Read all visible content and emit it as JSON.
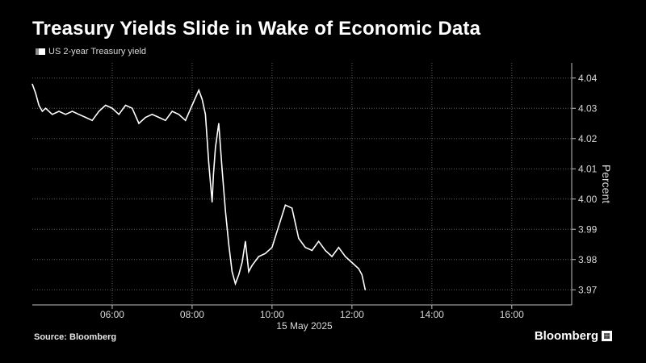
{
  "header": {
    "title": "Treasury Yields Slide in Wake of Economic Data"
  },
  "footer": {
    "source": "Source: Bloomberg",
    "brand": "Bloomberg"
  },
  "colors": {
    "background": "#000000",
    "line": "#ffffff",
    "grid": "#5a5a5a",
    "text": "#d9d9d9"
  },
  "chart_data": {
    "type": "line",
    "title": "Treasury Yields Slide in Wake of Economic Data",
    "xlabel": "15 May 2025",
    "ylabel": "Percent",
    "ylim": [
      3.965,
      4.045
    ],
    "xlim": [
      "04:00",
      "17:30"
    ],
    "x_tick_labels": [
      "06:00",
      "08:00",
      "10:00",
      "12:00",
      "14:00",
      "16:00"
    ],
    "y_tick_labels": [
      "4.04",
      "4.03",
      "4.02",
      "4.01",
      "4.00",
      "3.99",
      "3.98",
      "3.97"
    ],
    "grid": true,
    "y_axis_side": "right",
    "legend_position": "top-left",
    "series": [
      {
        "name": "US 2-year Treasury yield",
        "color": "#ffffff",
        "x": [
          "04:00",
          "04:05",
          "04:10",
          "04:15",
          "04:20",
          "04:30",
          "04:40",
          "04:50",
          "05:00",
          "05:10",
          "05:20",
          "05:30",
          "05:40",
          "05:50",
          "06:00",
          "06:10",
          "06:20",
          "06:30",
          "06:40",
          "06:50",
          "07:00",
          "07:10",
          "07:20",
          "07:30",
          "07:40",
          "07:50",
          "08:00",
          "08:10",
          "08:15",
          "08:20",
          "08:25",
          "08:30",
          "08:32",
          "08:35",
          "08:40",
          "08:45",
          "08:50",
          "08:55",
          "09:00",
          "09:05",
          "09:10",
          "09:15",
          "09:20",
          "09:25",
          "09:30",
          "09:40",
          "09:50",
          "10:00",
          "10:10",
          "10:20",
          "10:30",
          "10:40",
          "10:50",
          "11:00",
          "11:10",
          "11:20",
          "11:30",
          "11:40",
          "11:50",
          "12:00",
          "12:10",
          "12:15",
          "12:20"
        ],
        "values": [
          4.038,
          4.035,
          4.031,
          4.029,
          4.03,
          4.028,
          4.029,
          4.028,
          4.029,
          4.028,
          4.027,
          4.026,
          4.029,
          4.031,
          4.03,
          4.028,
          4.031,
          4.03,
          4.025,
          4.027,
          4.028,
          4.027,
          4.026,
          4.029,
          4.028,
          4.026,
          4.031,
          4.036,
          4.033,
          4.028,
          4.012,
          3.999,
          4.008,
          4.017,
          4.025,
          4.01,
          3.996,
          3.985,
          3.976,
          3.972,
          3.975,
          3.979,
          3.986,
          3.976,
          3.978,
          3.981,
          3.982,
          3.984,
          3.991,
          3.998,
          3.997,
          3.987,
          3.984,
          3.983,
          3.986,
          3.983,
          3.981,
          3.984,
          3.981,
          3.979,
          3.977,
          3.975,
          3.97
        ]
      }
    ]
  }
}
